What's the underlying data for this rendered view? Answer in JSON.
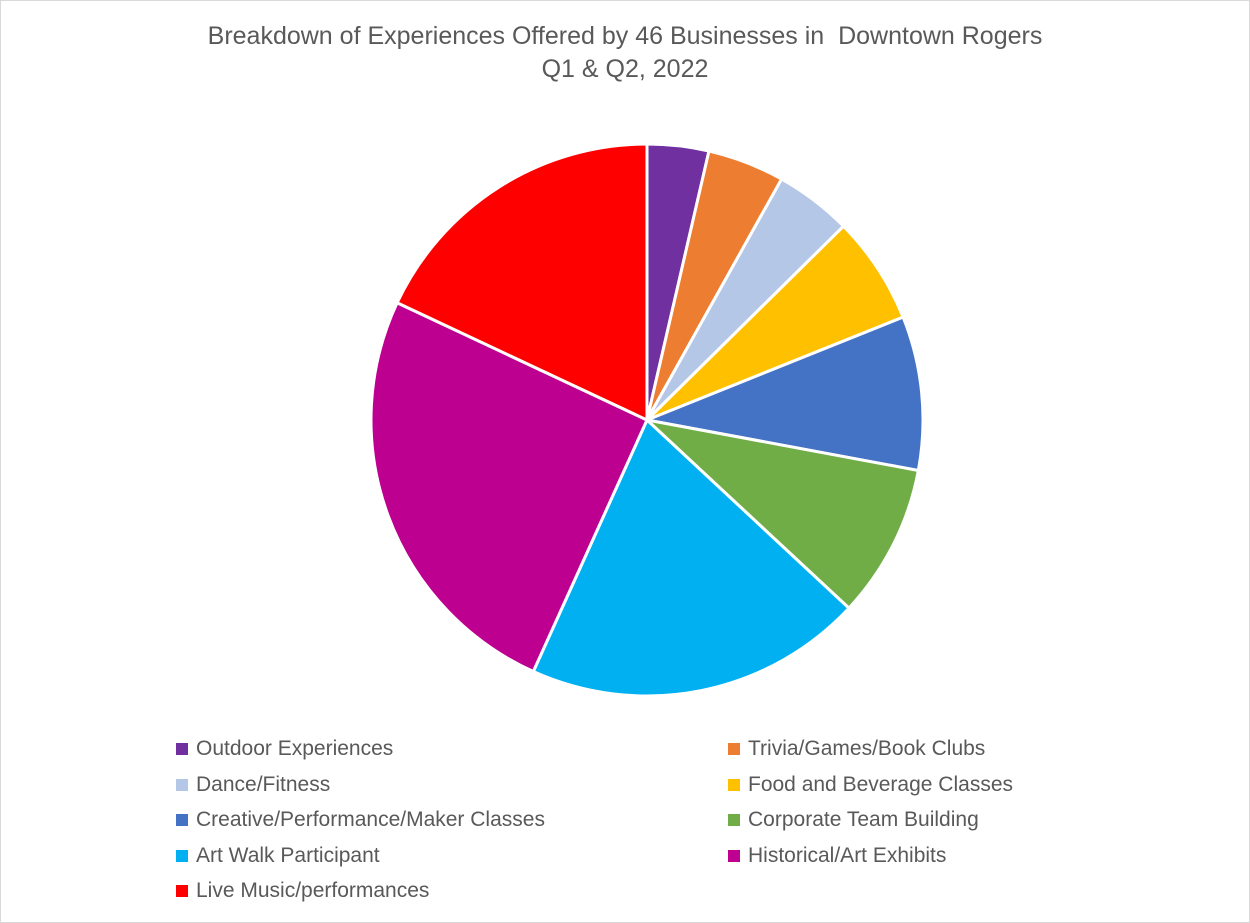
{
  "chart_data": {
    "type": "pie",
    "title_line1": "Breakdown of Experiences Offered by 46 Businesses in  Downtown Rogers",
    "title_line2": "Q1 & Q2, 2022",
    "legend_position": "bottom",
    "slices": [
      {
        "label": "Outdoor Experiences",
        "value": 3.6,
        "color": "#7030A0"
      },
      {
        "label": "Trivia/Games/Book Clubs",
        "value": 4.5,
        "color": "#ED7D31"
      },
      {
        "label": "Dance/Fitness",
        "value": 4.5,
        "color": "#B4C7E7"
      },
      {
        "label": "Food and Beverage Classes",
        "value": 6.3,
        "color": "#FFC000"
      },
      {
        "label": "Creative/Performance/Maker Classes",
        "value": 9.0,
        "color": "#4472C4"
      },
      {
        "label": "Corporate Team Building",
        "value": 9.0,
        "color": "#70AD47"
      },
      {
        "label": "Art Walk Participant",
        "value": 19.8,
        "color": "#00B0F0"
      },
      {
        "label": "Historical/Art Exhibits",
        "value": 25.2,
        "color": "#BE0090"
      },
      {
        "label": "Live Music/performances",
        "value": 18.0,
        "color": "#FF0000"
      }
    ]
  }
}
